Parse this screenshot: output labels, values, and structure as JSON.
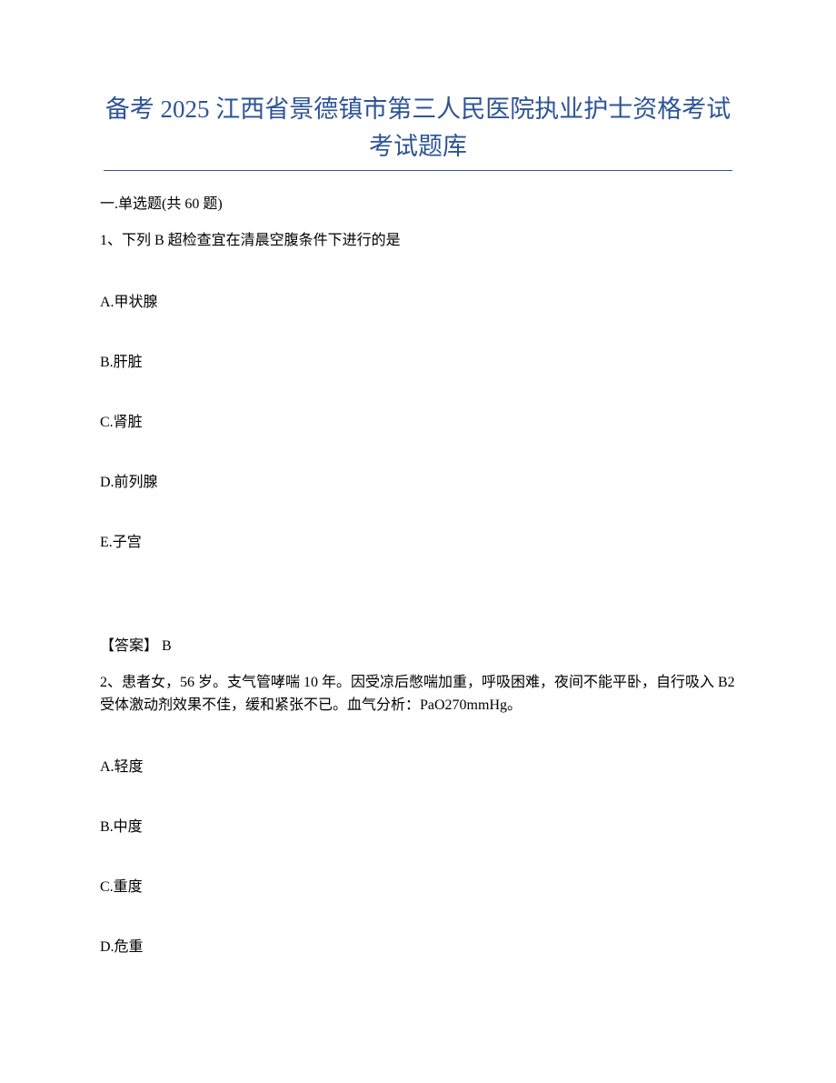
{
  "title_line1": "备考 2025 江西省景德镇市第三人民医院执业护士资格考试",
  "title_line2": "考试题库",
  "section_header": "一.单选题(共 60 题)",
  "questions": [
    {
      "stem": "1、下列 B 超检查宜在清晨空腹条件下进行的是",
      "options": [
        "A.甲状腺",
        "B.肝脏",
        "C.肾脏",
        "D.前列腺",
        "E.子宫"
      ],
      "answer_label": "【答案】 B"
    },
    {
      "stem": "2、患者女，56 岁。支气管哮喘 10 年。因受凉后憋喘加重，呼吸困难，夜间不能平卧，自行吸入 B2 受体激动剂效果不佳，缓和紧张不已。血气分析：PaO270mmHg。",
      "options": [
        "A.轻度",
        "B.中度",
        "C.重度",
        "D.危重"
      ]
    }
  ],
  "colors": {
    "title_color": "#2e5496",
    "text_color": "#000000",
    "background": "#ffffff",
    "underline_color": "#2e5496"
  },
  "typography": {
    "title_fontsize": 27,
    "body_fontsize": 16,
    "font_family": "SimSun"
  }
}
